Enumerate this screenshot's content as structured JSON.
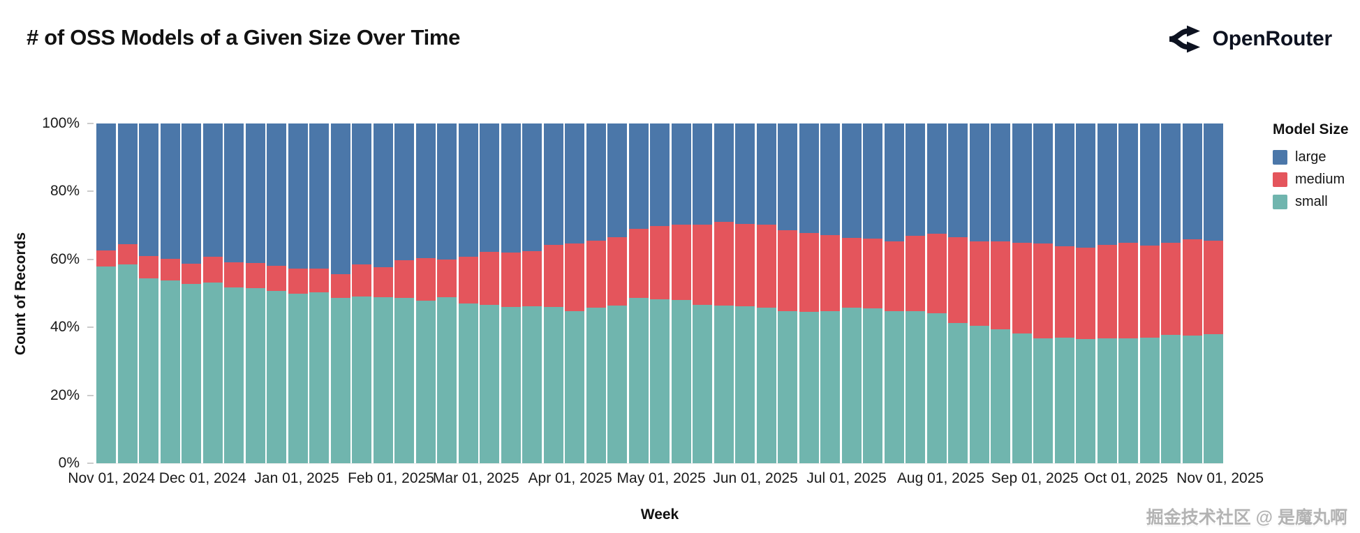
{
  "header": {
    "title": "# of OSS Models of a Given Size Over Time",
    "brand": "OpenRouter"
  },
  "watermark": {
    "text": "掘金技术社区 @ 是魔丸啊"
  },
  "chart_data": {
    "type": "bar",
    "stacked": true,
    "normalized_percent": true,
    "title": "# of OSS Models of a Given Size Over Time",
    "xlabel": "Week",
    "ylabel": "Count of Records",
    "legend_title": "Model Size",
    "legend_position": "right",
    "grid": false,
    "ylim": [
      0,
      100
    ],
    "y_ticks": [
      {
        "value": 100,
        "label": "100%"
      },
      {
        "value": 80,
        "label": "80%"
      },
      {
        "value": 60,
        "label": "60%"
      },
      {
        "value": 40,
        "label": "40%"
      },
      {
        "value": 20,
        "label": "20%"
      },
      {
        "value": 0,
        "label": "0%"
      }
    ],
    "x_ticks": [
      {
        "label": "Nov 01, 2024",
        "day": 0
      },
      {
        "label": "Dec 01, 2024",
        "day": 30
      },
      {
        "label": "Jan 01, 2025",
        "day": 61
      },
      {
        "label": "Feb 01, 2025",
        "day": 92
      },
      {
        "label": "Mar 01, 2025",
        "day": 120
      },
      {
        "label": "Apr 01, 2025",
        "day": 151
      },
      {
        "label": "May 01, 2025",
        "day": 181
      },
      {
        "label": "Jun 01, 2025",
        "day": 212
      },
      {
        "label": "Jul 01, 2025",
        "day": 242
      },
      {
        "label": "Aug 01, 2025",
        "day": 273
      },
      {
        "label": "Sep 01, 2025",
        "day": 304
      },
      {
        "label": "Oct 01, 2025",
        "day": 334
      },
      {
        "label": "Nov 01, 2025",
        "day": 365
      }
    ],
    "x_domain_days": {
      "start": -5,
      "end": 366
    },
    "categories": [
      "2024-10-27",
      "2024-11-03",
      "2024-11-10",
      "2024-11-17",
      "2024-11-24",
      "2024-12-01",
      "2024-12-08",
      "2024-12-15",
      "2024-12-22",
      "2024-12-29",
      "2025-01-05",
      "2025-01-12",
      "2025-01-19",
      "2025-01-26",
      "2025-02-02",
      "2025-02-09",
      "2025-02-16",
      "2025-02-23",
      "2025-03-02",
      "2025-03-09",
      "2025-03-16",
      "2025-03-23",
      "2025-03-30",
      "2025-04-06",
      "2025-04-13",
      "2025-04-20",
      "2025-04-27",
      "2025-05-04",
      "2025-05-11",
      "2025-05-18",
      "2025-05-25",
      "2025-06-01",
      "2025-06-08",
      "2025-06-15",
      "2025-06-22",
      "2025-06-29",
      "2025-07-06",
      "2025-07-13",
      "2025-07-20",
      "2025-07-27",
      "2025-08-03",
      "2025-08-10",
      "2025-08-17",
      "2025-08-24",
      "2025-08-31",
      "2025-09-07",
      "2025-09-14",
      "2025-09-21",
      "2025-09-28",
      "2025-10-05",
      "2025-10-12",
      "2025-10-19",
      "2025-10-26"
    ],
    "series": [
      {
        "name": "large",
        "color": "#4b77a9",
        "values": [
          37.3,
          35.6,
          39.0,
          39.8,
          41.2,
          39.2,
          40.8,
          41.0,
          41.8,
          42.7,
          42.7,
          44.3,
          41.5,
          42.2,
          40.3,
          39.7,
          40.0,
          39.3,
          37.8,
          38.0,
          37.6,
          35.8,
          35.4,
          34.5,
          33.5,
          31.0,
          30.2,
          29.7,
          29.7,
          29.0,
          29.5,
          29.8,
          31.4,
          32.2,
          32.9,
          33.7,
          33.8,
          34.6,
          33.1,
          32.5,
          33.5,
          34.6,
          34.8,
          35.1,
          35.3,
          36.1,
          36.6,
          35.8,
          35.1,
          35.9,
          35.1,
          34.0,
          34.4
        ]
      },
      {
        "name": "medium",
        "color": "#e4555c",
        "values": [
          4.7,
          5.9,
          6.6,
          6.3,
          6.1,
          7.7,
          7.4,
          7.5,
          7.5,
          7.4,
          7.0,
          7.0,
          9.4,
          9.0,
          11.1,
          12.5,
          11.2,
          13.6,
          15.5,
          15.9,
          16.1,
          18.3,
          19.9,
          19.8,
          20.0,
          20.4,
          21.6,
          22.2,
          23.7,
          24.6,
          24.3,
          24.5,
          23.9,
          23.3,
          22.3,
          20.5,
          20.6,
          20.6,
          22.2,
          23.3,
          25.2,
          25.0,
          25.8,
          26.7,
          28.0,
          26.9,
          26.9,
          27.5,
          28.2,
          27.1,
          27.2,
          28.4,
          27.7
        ]
      },
      {
        "name": "small",
        "color": "#70b5ae",
        "values": [
          58.0,
          58.5,
          54.4,
          53.9,
          52.7,
          53.1,
          51.8,
          51.5,
          50.7,
          49.9,
          50.3,
          48.7,
          49.1,
          48.8,
          48.6,
          47.8,
          48.8,
          47.1,
          46.7,
          46.1,
          46.3,
          45.9,
          44.7,
          45.7,
          46.5,
          48.6,
          48.2,
          48.1,
          46.6,
          46.4,
          46.2,
          45.7,
          44.7,
          44.5,
          44.8,
          45.8,
          45.6,
          44.8,
          44.7,
          44.2,
          41.3,
          40.4,
          39.4,
          38.2,
          36.7,
          37.0,
          36.5,
          36.7,
          36.7,
          37.0,
          37.7,
          37.6,
          37.9
        ]
      }
    ]
  }
}
